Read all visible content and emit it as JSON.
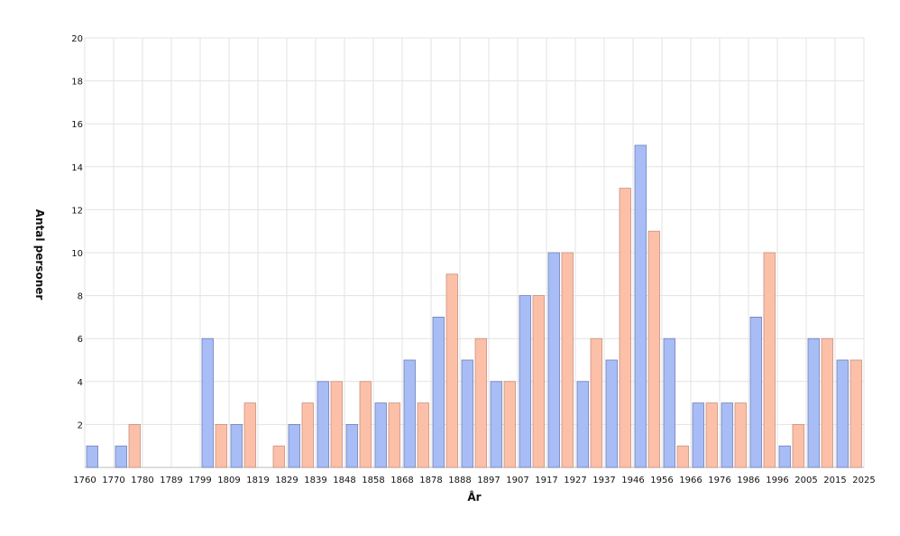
{
  "chart_data": {
    "type": "bar",
    "xlabel": "År",
    "ylabel": "Antal personer",
    "ylim": [
      0,
      20
    ],
    "yticks": [
      2,
      4,
      6,
      8,
      10,
      12,
      14,
      16,
      18,
      20
    ],
    "x_tick_labels": [
      "1760",
      "1770",
      "1780",
      "1789",
      "1799",
      "1809",
      "1819",
      "1829",
      "1839",
      "1848",
      "1858",
      "1868",
      "1878",
      "1888",
      "1897",
      "1907",
      "1917",
      "1927",
      "1937",
      "1946",
      "1956",
      "1966",
      "1976",
      "1986",
      "1996",
      "2005",
      "2015",
      "2025"
    ],
    "grid": true,
    "legend": null,
    "series": [
      {
        "color": "#a8bcf5",
        "values": [
          1,
          1,
          0,
          0,
          6,
          2,
          0,
          2,
          4,
          2,
          3,
          5,
          7,
          5,
          4,
          8,
          10,
          4,
          5,
          15,
          6,
          3,
          3,
          7,
          1,
          6,
          5
        ]
      },
      {
        "color": "#fcc0a8",
        "values": [
          0,
          2,
          0,
          0,
          2,
          3,
          1,
          3,
          4,
          4,
          3,
          3,
          9,
          6,
          4,
          8,
          10,
          6,
          13,
          11,
          1,
          3,
          3,
          10,
          2,
          6,
          5
        ]
      }
    ]
  }
}
